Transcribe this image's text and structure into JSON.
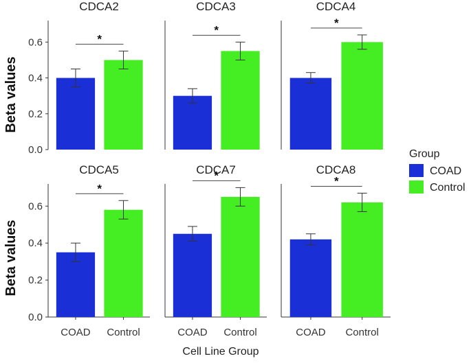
{
  "chart_data": {
    "type": "bar",
    "xlabel": "Cell Line Group",
    "ylabel": "Beta values",
    "ylim": [
      0,
      0.72
    ],
    "yticks": [
      0.0,
      0.2,
      0.4,
      0.6
    ],
    "ytick_labels": [
      "0.0",
      "0.2",
      "0.4",
      "0.6"
    ],
    "categories": [
      "COAD",
      "Control"
    ],
    "legend": {
      "title": "Group",
      "position": "right",
      "entries": [
        {
          "label": "COAD",
          "color": "#1a2fd6"
        },
        {
          "label": "Control",
          "color": "#44ee22"
        }
      ]
    },
    "significance_label": "*",
    "panels": [
      {
        "title": "CDCA2",
        "values": [
          0.4,
          0.5
        ],
        "errors": [
          0.05,
          0.05
        ]
      },
      {
        "title": "CDCA3",
        "values": [
          0.3,
          0.55
        ],
        "errors": [
          0.04,
          0.05
        ]
      },
      {
        "title": "CDCA4",
        "values": [
          0.4,
          0.6
        ],
        "errors": [
          0.03,
          0.04
        ]
      },
      {
        "title": "CDCA5",
        "values": [
          0.35,
          0.58
        ],
        "errors": [
          0.05,
          0.05
        ]
      },
      {
        "title": "CDCA7",
        "values": [
          0.45,
          0.65
        ],
        "errors": [
          0.04,
          0.05
        ]
      },
      {
        "title": "CDCA8",
        "values": [
          0.42,
          0.62
        ],
        "errors": [
          0.03,
          0.05
        ]
      }
    ]
  }
}
